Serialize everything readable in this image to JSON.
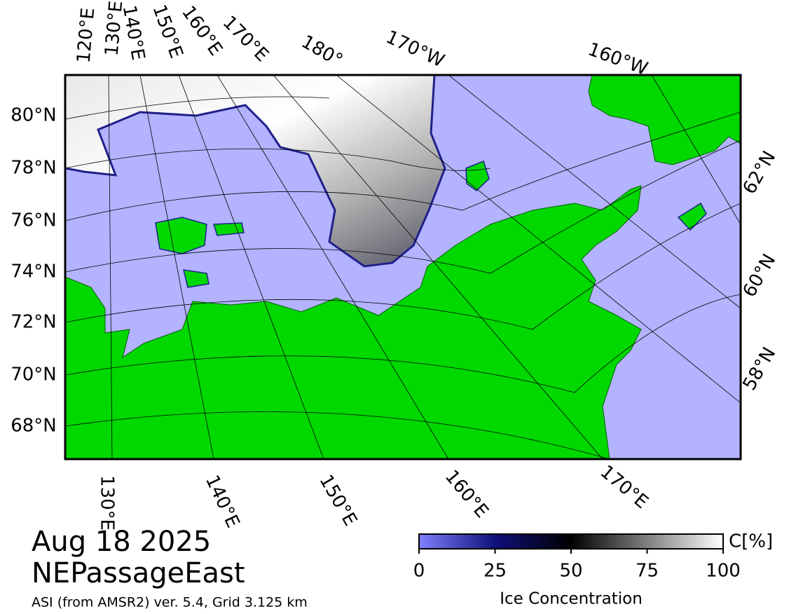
{
  "map": {
    "top_labels": [
      "120°E",
      "130°E",
      "140°E",
      "150°E",
      "160°E",
      "170°E",
      "180°",
      "170°W",
      "160°W"
    ],
    "left_labels": [
      "80°N",
      "78°N",
      "76°N",
      "74°N",
      "72°N",
      "70°N",
      "68°N"
    ],
    "right_labels": [
      "62°N",
      "60°N",
      "58°N"
    ],
    "bottom_labels": [
      "130°E",
      "140°E",
      "150°E",
      "160°E",
      "170°E"
    ]
  },
  "caption": {
    "date": "Aug 18 2025",
    "region": "NEPassageEast",
    "source": "ASI (from AMSR2) ver. 5.4,  Grid 3.125 km"
  },
  "colorbar": {
    "unit": "C[%]",
    "label": "Ice Concentration",
    "range": [
      0,
      100
    ],
    "ticks": [
      0,
      25,
      50,
      75,
      100
    ]
  }
}
